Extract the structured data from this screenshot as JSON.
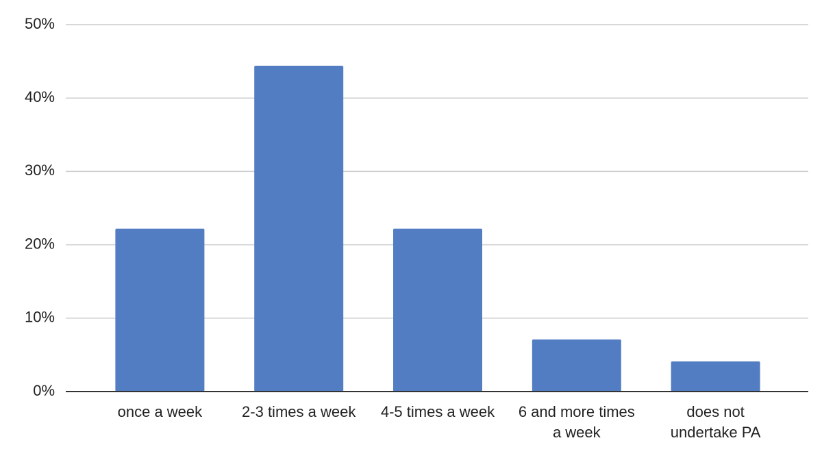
{
  "chart_data": {
    "type": "bar",
    "categories": [
      "once a week",
      "2-3 times a week",
      "4-5 times a week",
      "6 and more times a week",
      "does not undertake PA"
    ],
    "values": [
      22.2,
      44.4,
      22.2,
      7.1,
      4.1
    ],
    "color": "#527dc2",
    "ylim": [
      0,
      50
    ],
    "yticks": [
      {
        "value": 0,
        "label": "0%"
      },
      {
        "value": 10,
        "label": "10%"
      },
      {
        "value": 20,
        "label": "20%"
      },
      {
        "value": 30,
        "label": "30%"
      },
      {
        "value": 40,
        "label": "40%"
      },
      {
        "value": 50,
        "label": "50%"
      }
    ],
    "grid": true
  }
}
